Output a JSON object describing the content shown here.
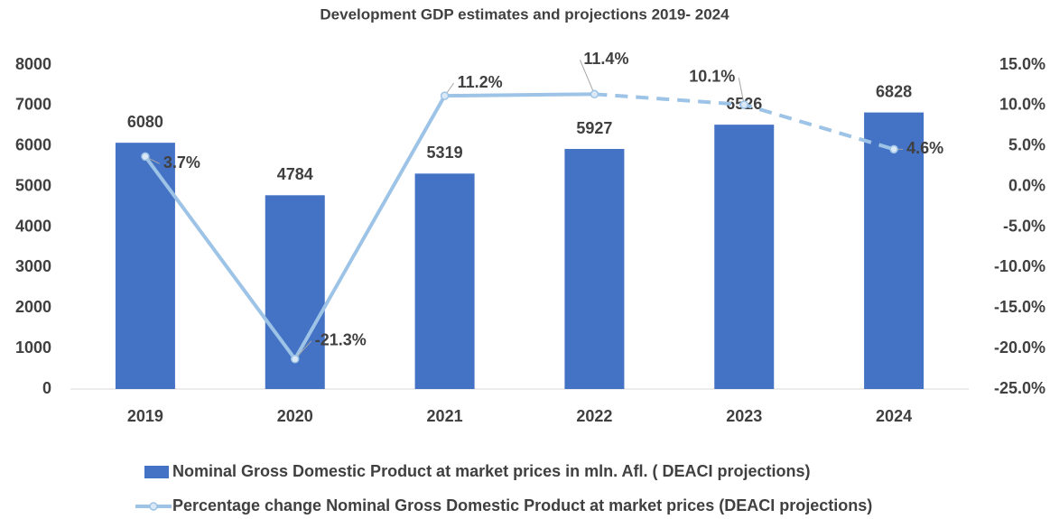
{
  "chart_data": {
    "type": "bar_line",
    "title": "Development GDP estimates and projections 2019- 2024",
    "categories": [
      "2019",
      "2020",
      "2021",
      "2022",
      "2023",
      "2024"
    ],
    "series": [
      {
        "name": "Nominal Gross Domestic Product at market prices in mln. Afl. ( DEACI projections)",
        "type": "bar",
        "color": "#4472c4",
        "values": [
          6080,
          4784,
          5319,
          5927,
          6526,
          6828
        ]
      },
      {
        "name": "Percentage change Nominal Gross Domestic Product at market prices (DEACI projections)",
        "type": "line",
        "axis": "y2",
        "color": "#9dc3e6",
        "values": [
          3.7,
          -21.3,
          11.2,
          11.4,
          10.1,
          4.6
        ],
        "value_labels": [
          "3.7%",
          "-21.3%",
          "11.2%",
          "11.4%",
          "10.1%",
          "4.6%"
        ],
        "dashed_from": "2022"
      }
    ],
    "ylim": [
      0,
      8000
    ],
    "yticks": [
      0,
      1000,
      2000,
      3000,
      4000,
      5000,
      6000,
      7000,
      8000
    ],
    "y2lim": [
      -25,
      15
    ],
    "y2ticks": [
      {
        "value": -25,
        "label": "-25.0%"
      },
      {
        "value": -20,
        "label": "-20.0%"
      },
      {
        "value": -15,
        "label": "-15.0%"
      },
      {
        "value": -10,
        "label": "-10.0%"
      },
      {
        "value": -5,
        "label": "-5.0%"
      },
      {
        "value": 0,
        "label": "0.0%"
      },
      {
        "value": 5,
        "label": "5.0%"
      },
      {
        "value": 10,
        "label": "10.0%"
      },
      {
        "value": 15,
        "label": "15.0%"
      }
    ],
    "grid": false,
    "legend": "bottom"
  }
}
